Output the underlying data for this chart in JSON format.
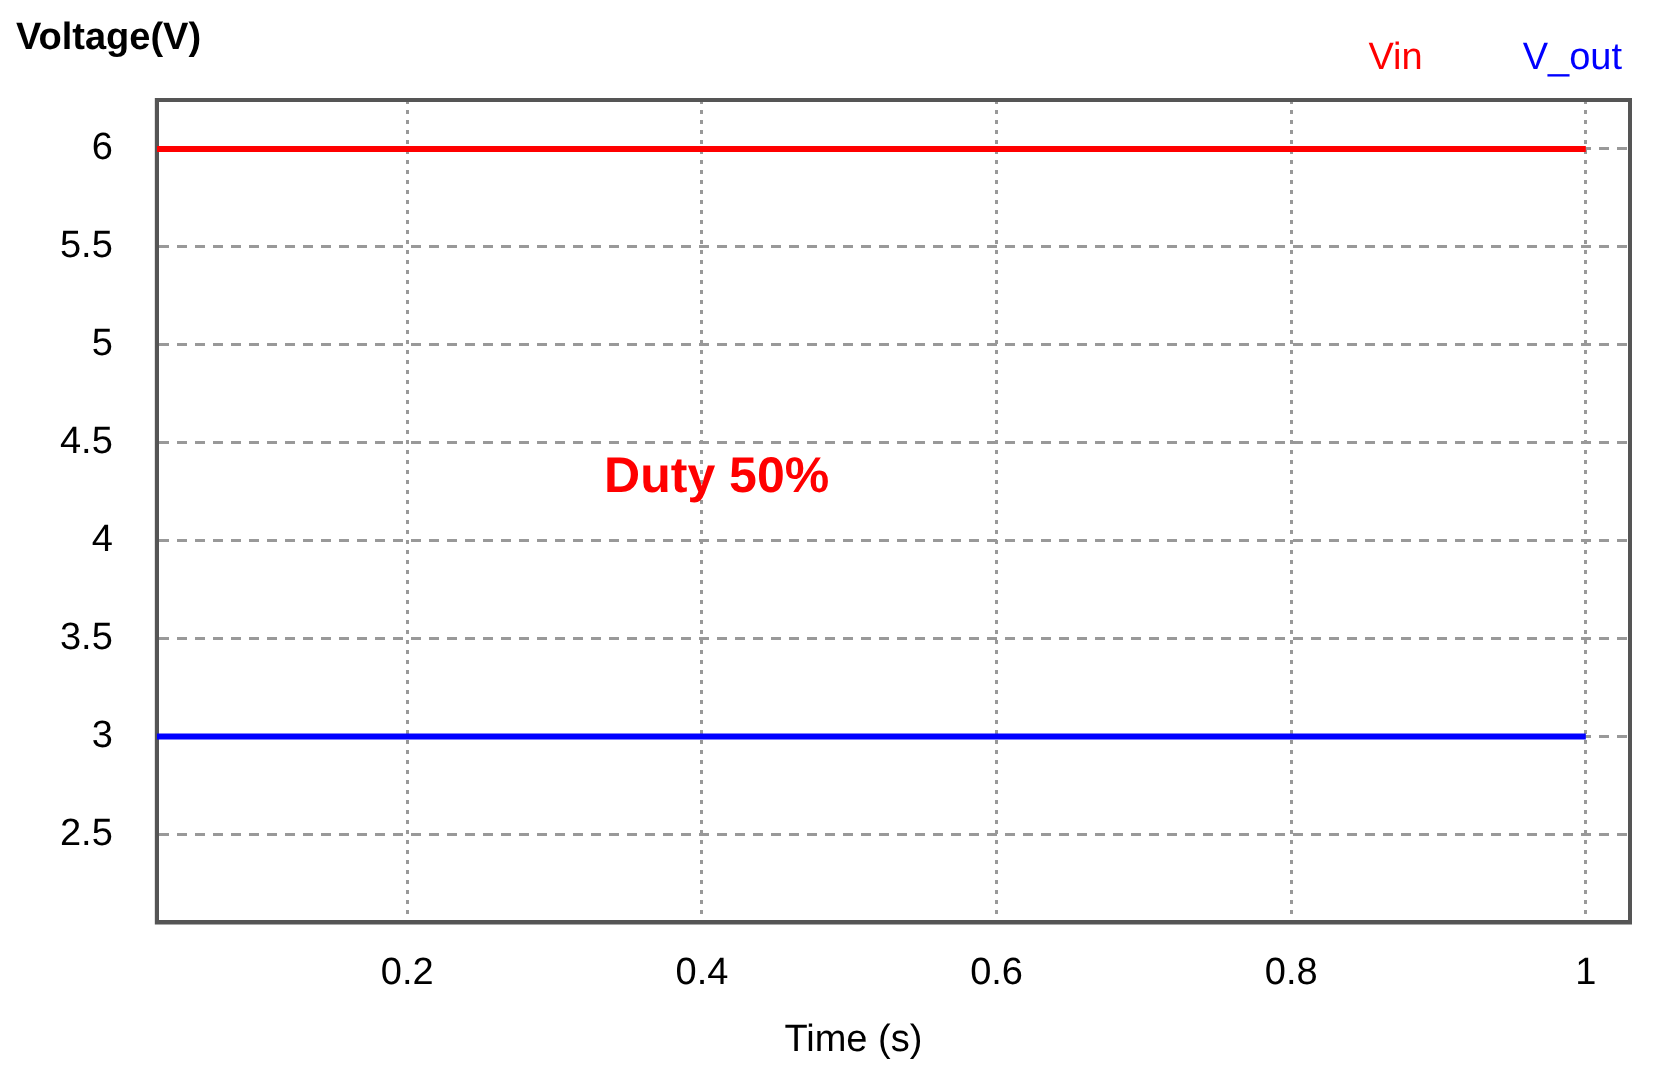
{
  "chart_data": {
    "type": "line",
    "ylabel": "Voltage(V)",
    "xlabel": "Time (s)",
    "x": [
      0.03,
      1
    ],
    "series": [
      {
        "name": "Vin",
        "color": "#ff0000",
        "values": [
          6,
          6
        ]
      },
      {
        "name": "V_out",
        "color": "#0000ff",
        "values": [
          3,
          3
        ]
      }
    ],
    "xlim": [
      0.03,
      1.03
    ],
    "xticks": [
      0.2,
      0.4,
      0.6,
      0.8,
      1
    ],
    "ylim": [
      2.05,
      6.25
    ],
    "yticks": [
      2.5,
      3,
      3.5,
      4,
      4.5,
      5,
      5.5,
      6
    ],
    "grid": true,
    "legend": "top right",
    "marker": "none",
    "line_style": "solid",
    "annotations": [
      "Duty 50%"
    ]
  }
}
